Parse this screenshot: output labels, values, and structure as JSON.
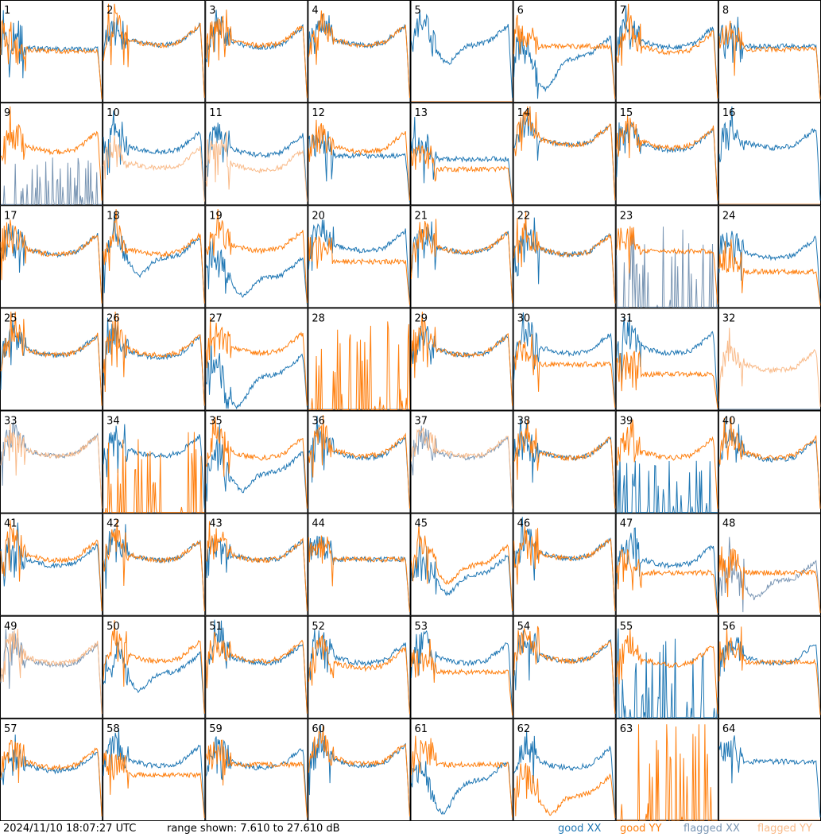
{
  "footer": {
    "timestamp": "2024/11/10 18:07:27 UTC",
    "range": "range shown: 7.610 to 27.610 dB",
    "legend": {
      "good_xx": "good XX",
      "good_yy": "good YY",
      "flagged_xx": "flagged XX",
      "flagged_yy": "flagged YY"
    }
  },
  "colors": {
    "good_xx": "#1f77b4",
    "good_yy": "#ff7f0e",
    "flagged_xx": "#7a96b4",
    "flagged_yy": "#f9bb8a"
  },
  "chart_data": {
    "type": "line",
    "grid": "8x8 small multiples",
    "ylim": [
      7.61,
      27.61
    ],
    "y_unit": "dB",
    "panels": [
      {
        "label": "1",
        "xx": {
          "shape": "decay",
          "level": 0.52,
          "state": "good"
        },
        "yy": {
          "shape": "decay",
          "level": 0.5,
          "state": "good"
        }
      },
      {
        "label": "2",
        "xx": {
          "shape": "normal",
          "level": 0.62,
          "state": "good"
        },
        "yy": {
          "shape": "normal",
          "level": 0.62,
          "state": "good"
        }
      },
      {
        "label": "3",
        "xx": {
          "shape": "normal",
          "level": 0.6,
          "state": "good"
        },
        "yy": {
          "shape": "normal",
          "level": 0.62,
          "state": "good"
        }
      },
      {
        "label": "4",
        "xx": {
          "shape": "normal",
          "level": 0.62,
          "state": "good"
        },
        "yy": {
          "shape": "normal",
          "level": 0.62,
          "state": "good"
        }
      },
      {
        "label": "5",
        "xx": {
          "shape": "dip",
          "level": 0.62,
          "state": "good"
        },
        "yy": {
          "shape": "dead",
          "level": 0.0,
          "state": "flagged"
        }
      },
      {
        "label": "6",
        "xx": {
          "shape": "deepdip",
          "level": 0.5,
          "state": "good"
        },
        "yy": {
          "shape": "plateau",
          "level": 0.55,
          "state": "good"
        }
      },
      {
        "label": "7",
        "xx": {
          "shape": "normal",
          "level": 0.6,
          "state": "good"
        },
        "yy": {
          "shape": "normal",
          "level": 0.55,
          "state": "good"
        }
      },
      {
        "label": "8",
        "xx": {
          "shape": "plateau",
          "level": 0.55,
          "state": "good"
        },
        "yy": {
          "shape": "plateau",
          "level": 0.52,
          "state": "good"
        }
      },
      {
        "label": "9",
        "xx": {
          "shape": "spiky",
          "level": 0.2,
          "state": "flagged"
        },
        "yy": {
          "shape": "normal",
          "level": 0.58,
          "state": "good"
        }
      },
      {
        "label": "10",
        "xx": {
          "shape": "normal",
          "level": 0.58,
          "state": "good"
        },
        "yy": {
          "shape": "normal",
          "level": 0.42,
          "state": "flagged"
        }
      },
      {
        "label": "11",
        "xx": {
          "shape": "normal",
          "level": 0.55,
          "state": "good"
        },
        "yy": {
          "shape": "normal",
          "level": 0.4,
          "state": "flagged"
        }
      },
      {
        "label": "12",
        "xx": {
          "shape": "plateau",
          "level": 0.48,
          "state": "good"
        },
        "yy": {
          "shape": "normal",
          "level": 0.58,
          "state": "good"
        }
      },
      {
        "label": "13",
        "xx": {
          "shape": "plateau",
          "level": 0.45,
          "state": "good"
        },
        "yy": {
          "shape": "plateau",
          "level": 0.35,
          "state": "good"
        }
      },
      {
        "label": "14",
        "xx": {
          "shape": "normal",
          "level": 0.65,
          "state": "good"
        },
        "yy": {
          "shape": "normal",
          "level": 0.65,
          "state": "good"
        }
      },
      {
        "label": "15",
        "xx": {
          "shape": "normal",
          "level": 0.6,
          "state": "good"
        },
        "yy": {
          "shape": "normal",
          "level": 0.62,
          "state": "good"
        }
      },
      {
        "label": "16",
        "xx": {
          "shape": "normal",
          "level": 0.62,
          "state": "good"
        },
        "yy": {
          "shape": "dead",
          "level": 0.0,
          "state": "flagged"
        }
      },
      {
        "label": "17",
        "xx": {
          "shape": "normal",
          "level": 0.58,
          "state": "good"
        },
        "yy": {
          "shape": "normal",
          "level": 0.58,
          "state": "good"
        }
      },
      {
        "label": "18",
        "xx": {
          "shape": "dip",
          "level": 0.55,
          "state": "good"
        },
        "yy": {
          "shape": "normal",
          "level": 0.58,
          "state": "good"
        }
      },
      {
        "label": "19",
        "xx": {
          "shape": "dip",
          "level": 0.35,
          "state": "good"
        },
        "yy": {
          "shape": "normal",
          "level": 0.62,
          "state": "good"
        }
      },
      {
        "label": "20",
        "xx": {
          "shape": "normal",
          "level": 0.62,
          "state": "good"
        },
        "yy": {
          "shape": "plateau",
          "level": 0.45,
          "state": "good"
        }
      },
      {
        "label": "21",
        "xx": {
          "shape": "normal",
          "level": 0.6,
          "state": "good"
        },
        "yy": {
          "shape": "normal",
          "level": 0.6,
          "state": "good"
        }
      },
      {
        "label": "22",
        "xx": {
          "shape": "normal",
          "level": 0.58,
          "state": "good"
        },
        "yy": {
          "shape": "normal",
          "level": 0.58,
          "state": "good"
        }
      },
      {
        "label": "23",
        "xx": {
          "shape": "spiky",
          "level": 0.5,
          "state": "flagged"
        },
        "yy": {
          "shape": "plateau",
          "level": 0.55,
          "state": "good"
        }
      },
      {
        "label": "24",
        "xx": {
          "shape": "normal",
          "level": 0.55,
          "state": "good"
        },
        "yy": {
          "shape": "plateau",
          "level": 0.35,
          "state": "good"
        }
      },
      {
        "label": "25",
        "xx": {
          "shape": "normal",
          "level": 0.6,
          "state": "good"
        },
        "yy": {
          "shape": "normal",
          "level": 0.6,
          "state": "good"
        }
      },
      {
        "label": "26",
        "xx": {
          "shape": "normal",
          "level": 0.58,
          "state": "good"
        },
        "yy": {
          "shape": "normal",
          "level": 0.6,
          "state": "good"
        }
      },
      {
        "label": "27",
        "xx": {
          "shape": "deepdip",
          "level": 0.4,
          "state": "good"
        },
        "yy": {
          "shape": "normal",
          "level": 0.62,
          "state": "good"
        }
      },
      {
        "label": "28",
        "xx": {
          "shape": "dead",
          "level": 0.0,
          "state": "flagged"
        },
        "yy": {
          "shape": "spiky",
          "level": 0.6,
          "state": "good"
        }
      },
      {
        "label": "29",
        "xx": {
          "shape": "normal",
          "level": 0.6,
          "state": "good"
        },
        "yy": {
          "shape": "normal",
          "level": 0.6,
          "state": "good"
        }
      },
      {
        "label": "30",
        "xx": {
          "shape": "normal",
          "level": 0.62,
          "state": "good"
        },
        "yy": {
          "shape": "plateau",
          "level": 0.45,
          "state": "good"
        }
      },
      {
        "label": "31",
        "xx": {
          "shape": "normal",
          "level": 0.62,
          "state": "good"
        },
        "yy": {
          "shape": "plateau",
          "level": 0.35,
          "state": "good"
        }
      },
      {
        "label": "32",
        "xx": {
          "shape": "dead",
          "level": 0.0,
          "state": "flagged"
        },
        "yy": {
          "shape": "normal",
          "level": 0.45,
          "state": "flagged"
        }
      },
      {
        "label": "33",
        "xx": {
          "shape": "normal",
          "level": 0.62,
          "state": "flagged"
        },
        "yy": {
          "shape": "normal",
          "level": 0.62,
          "state": "flagged"
        }
      },
      {
        "label": "34",
        "xx": {
          "shape": "normal",
          "level": 0.62,
          "state": "good"
        },
        "yy": {
          "shape": "spiky",
          "level": 0.5,
          "state": "good"
        }
      },
      {
        "label": "35",
        "xx": {
          "shape": "dip",
          "level": 0.45,
          "state": "good"
        },
        "yy": {
          "shape": "normal",
          "level": 0.6,
          "state": "good"
        }
      },
      {
        "label": "36",
        "xx": {
          "shape": "normal",
          "level": 0.6,
          "state": "good"
        },
        "yy": {
          "shape": "normal",
          "level": 0.62,
          "state": "good"
        }
      },
      {
        "label": "37",
        "xx": {
          "shape": "normal",
          "level": 0.6,
          "state": "flagged"
        },
        "yy": {
          "shape": "normal",
          "level": 0.62,
          "state": "flagged"
        }
      },
      {
        "label": "38",
        "xx": {
          "shape": "normal",
          "level": 0.6,
          "state": "good"
        },
        "yy": {
          "shape": "normal",
          "level": 0.6,
          "state": "good"
        }
      },
      {
        "label": "39",
        "xx": {
          "shape": "spiky",
          "level": 0.3,
          "state": "good"
        },
        "yy": {
          "shape": "normal",
          "level": 0.6,
          "state": "good"
        }
      },
      {
        "label": "40",
        "xx": {
          "shape": "normal",
          "level": 0.58,
          "state": "good"
        },
        "yy": {
          "shape": "normal",
          "level": 0.6,
          "state": "good"
        }
      },
      {
        "label": "41",
        "xx": {
          "shape": "normal",
          "level": 0.55,
          "state": "good"
        },
        "yy": {
          "shape": "normal",
          "level": 0.6,
          "state": "good"
        }
      },
      {
        "label": "42",
        "xx": {
          "shape": "normal",
          "level": 0.6,
          "state": "good"
        },
        "yy": {
          "shape": "normal",
          "level": 0.6,
          "state": "good"
        }
      },
      {
        "label": "43",
        "xx": {
          "shape": "normal",
          "level": 0.6,
          "state": "good"
        },
        "yy": {
          "shape": "normal",
          "level": 0.6,
          "state": "good"
        }
      },
      {
        "label": "44",
        "xx": {
          "shape": "plateau",
          "level": 0.55,
          "state": "good"
        },
        "yy": {
          "shape": "plateau",
          "level": 0.55,
          "state": "good"
        }
      },
      {
        "label": "45",
        "xx": {
          "shape": "dip",
          "level": 0.45,
          "state": "good"
        },
        "yy": {
          "shape": "dip",
          "level": 0.55,
          "state": "good"
        }
      },
      {
        "label": "46",
        "xx": {
          "shape": "normal",
          "level": 0.62,
          "state": "good"
        },
        "yy": {
          "shape": "normal",
          "level": 0.62,
          "state": "good"
        }
      },
      {
        "label": "47",
        "xx": {
          "shape": "normal",
          "level": 0.55,
          "state": "good"
        },
        "yy": {
          "shape": "plateau",
          "level": 0.42,
          "state": "good"
        }
      },
      {
        "label": "48",
        "xx": {
          "shape": "dip",
          "level": 0.4,
          "state": "flagged"
        },
        "yy": {
          "shape": "plateau",
          "level": 0.42,
          "state": "good"
        }
      },
      {
        "label": "49",
        "xx": {
          "shape": "normal",
          "level": 0.58,
          "state": "flagged"
        },
        "yy": {
          "shape": "normal",
          "level": 0.6,
          "state": "flagged"
        }
      },
      {
        "label": "50",
        "xx": {
          "shape": "dip",
          "level": 0.5,
          "state": "good"
        },
        "yy": {
          "shape": "normal",
          "level": 0.62,
          "state": "good"
        }
      },
      {
        "label": "51",
        "xx": {
          "shape": "normal",
          "level": 0.6,
          "state": "good"
        },
        "yy": {
          "shape": "normal",
          "level": 0.62,
          "state": "good"
        }
      },
      {
        "label": "52",
        "xx": {
          "shape": "normal",
          "level": 0.6,
          "state": "good"
        },
        "yy": {
          "shape": "normal",
          "level": 0.55,
          "state": "good"
        }
      },
      {
        "label": "53",
        "xx": {
          "shape": "normal",
          "level": 0.6,
          "state": "good"
        },
        "yy": {
          "shape": "plateau",
          "level": 0.45,
          "state": "good"
        }
      },
      {
        "label": "54",
        "xx": {
          "shape": "normal",
          "level": 0.62,
          "state": "good"
        },
        "yy": {
          "shape": "normal",
          "level": 0.62,
          "state": "good"
        }
      },
      {
        "label": "55",
        "xx": {
          "shape": "spiky",
          "level": 0.6,
          "state": "good"
        },
        "yy": {
          "shape": "normal",
          "level": 0.58,
          "state": "good"
        }
      },
      {
        "label": "56",
        "xx": {
          "shape": "normal",
          "level": 0.6,
          "state": "good"
        },
        "yy": {
          "shape": "plateau",
          "level": 0.55,
          "state": "good"
        }
      },
      {
        "label": "57",
        "xx": {
          "shape": "normal",
          "level": 0.55,
          "state": "good"
        },
        "yy": {
          "shape": "normal",
          "level": 0.58,
          "state": "good"
        }
      },
      {
        "label": "58",
        "xx": {
          "shape": "normal",
          "level": 0.6,
          "state": "good"
        },
        "yy": {
          "shape": "plateau",
          "level": 0.45,
          "state": "good"
        }
      },
      {
        "label": "59",
        "xx": {
          "shape": "normal",
          "level": 0.58,
          "state": "good"
        },
        "yy": {
          "shape": "plateau",
          "level": 0.55,
          "state": "good"
        }
      },
      {
        "label": "60",
        "xx": {
          "shape": "normal",
          "level": 0.6,
          "state": "good"
        },
        "yy": {
          "shape": "normal",
          "level": 0.62,
          "state": "good"
        }
      },
      {
        "label": "61",
        "xx": {
          "shape": "deepdip",
          "level": 0.45,
          "state": "good"
        },
        "yy": {
          "shape": "plateau",
          "level": 0.55,
          "state": "good"
        }
      },
      {
        "label": "62",
        "xx": {
          "shape": "normal",
          "level": 0.58,
          "state": "good"
        },
        "yy": {
          "shape": "dip",
          "level": 0.3,
          "state": "good"
        }
      },
      {
        "label": "63",
        "xx": {
          "shape": "dead",
          "level": 0.0,
          "state": "flagged"
        },
        "yy": {
          "shape": "spiky",
          "level": 0.7,
          "state": "good"
        }
      },
      {
        "label": "64",
        "xx": {
          "shape": "plateau",
          "level": 0.58,
          "state": "good"
        },
        "yy": {
          "shape": "dead",
          "level": 0.0,
          "state": "flagged"
        }
      }
    ]
  }
}
